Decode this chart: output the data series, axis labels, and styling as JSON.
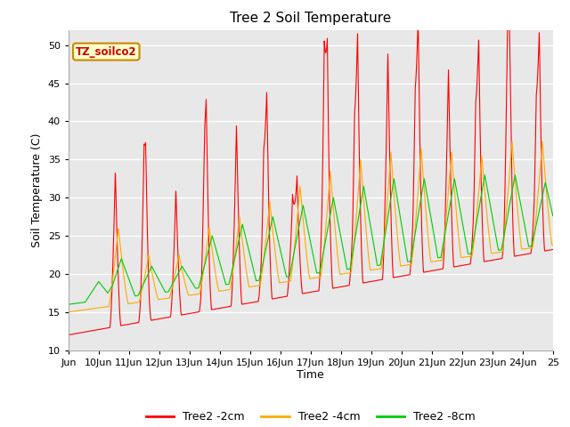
{
  "title": "Tree 2 Soil Temperature",
  "xlabel": "Time",
  "ylabel": "Soil Temperature (C)",
  "ylim": [
    10,
    52
  ],
  "yticks": [
    10,
    15,
    20,
    25,
    30,
    35,
    40,
    45,
    50
  ],
  "x_labels": [
    "Jun",
    "10Jun",
    "11Jun",
    "12Jun",
    "13Jun",
    "14Jun",
    "15Jun",
    "16Jun",
    "17Jun",
    "18Jun",
    "19Jun",
    "20Jun",
    "21Jun",
    "22Jun",
    "23Jun",
    "24Jun",
    "25"
  ],
  "annotation_text": "TZ_soilco2",
  "annotation_bg": "#ffffcc",
  "annotation_border": "#cc8800",
  "line_colors": {
    "2cm": "#ff0000",
    "4cm": "#ffaa00",
    "8cm": "#00cc00"
  },
  "legend_labels": [
    "Tree2 -2cm",
    "Tree2 -4cm",
    "Tree2 -8cm"
  ],
  "plot_bg": "#e8e8e8",
  "title_fontsize": 11,
  "axis_fontsize": 9,
  "tick_fontsize": 8
}
